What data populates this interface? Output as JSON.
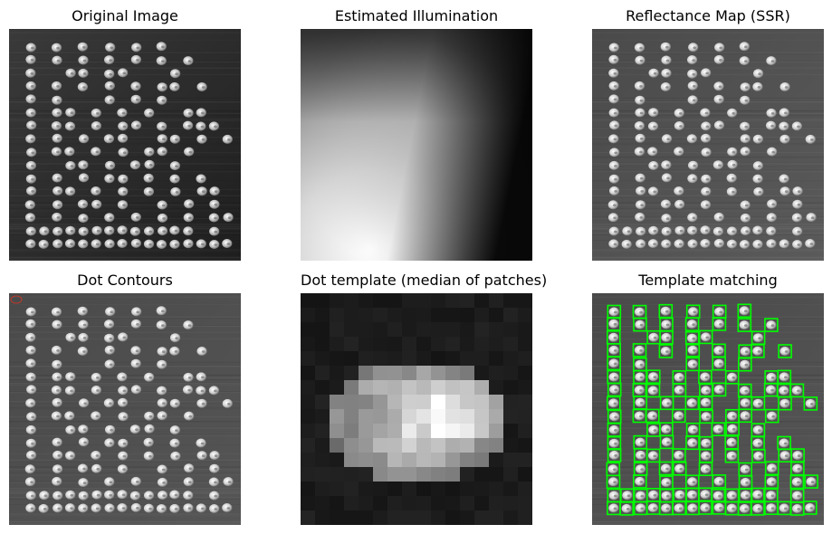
{
  "panels": [
    {
      "title": "Original Image"
    },
    {
      "title": "Estimated Illumination"
    },
    {
      "title": "Reflectance Map (SSR)"
    },
    {
      "title": "Dot Contours"
    },
    {
      "title": "Dot template (median of patches)"
    },
    {
      "title": "Template matching"
    }
  ],
  "colors": {
    "background_dark": "#2a2a2a",
    "dot_fill": "#d9d9d9",
    "contour_marker": "#c0392b",
    "match_box": "#00ff00"
  }
}
